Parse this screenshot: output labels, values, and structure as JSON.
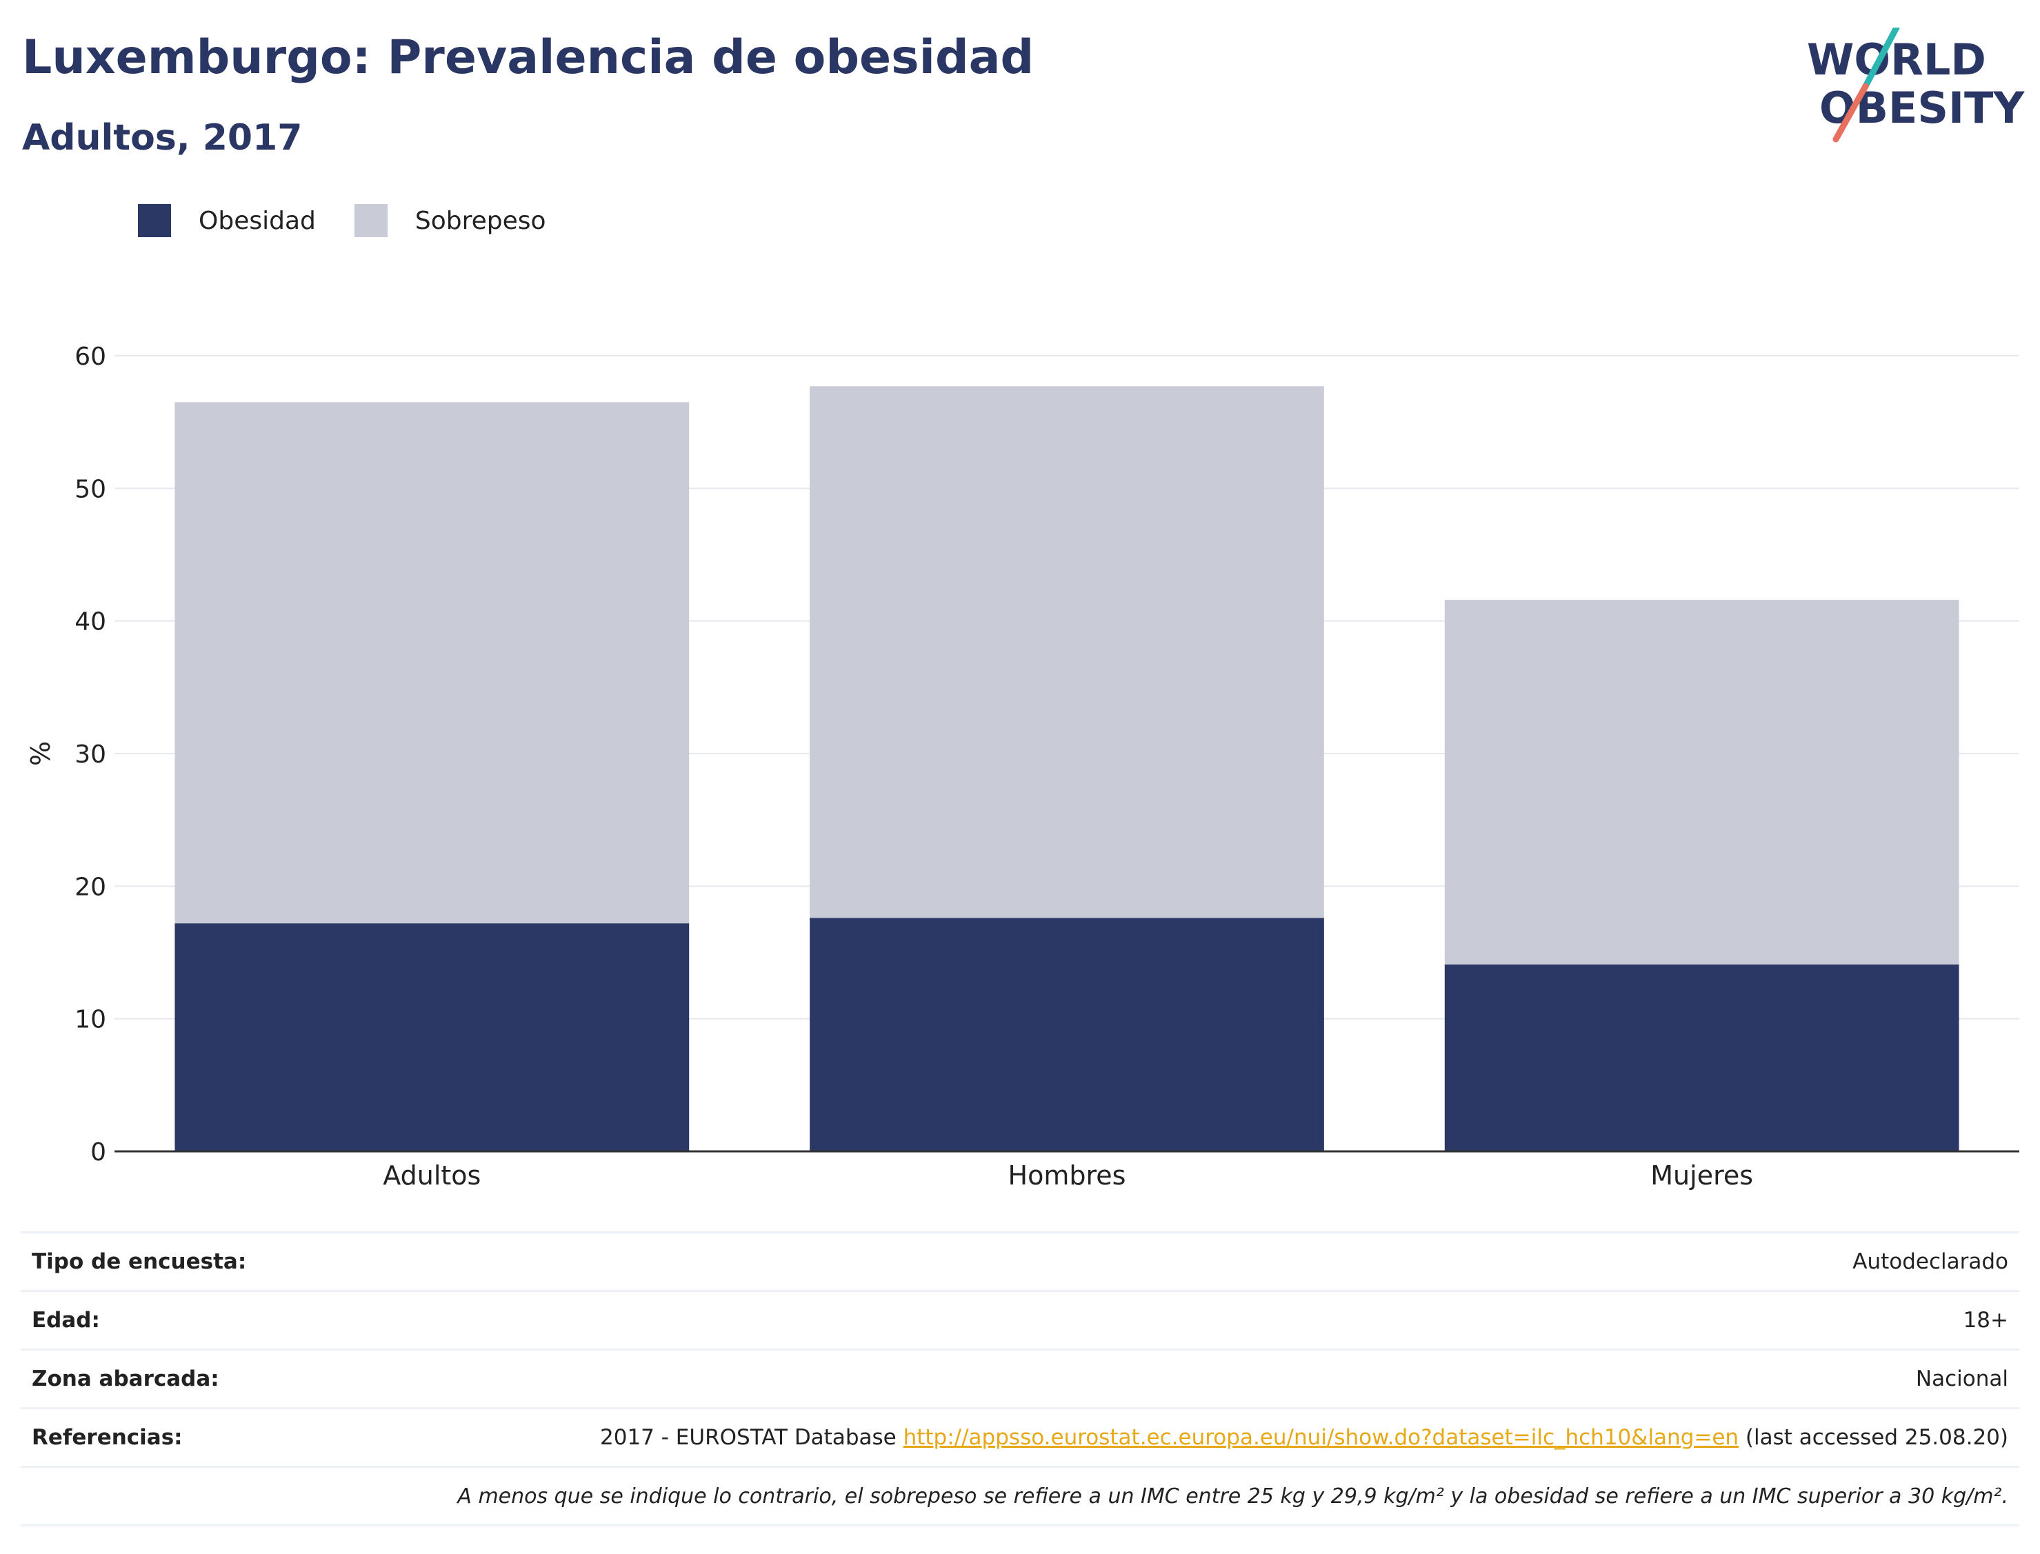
{
  "header": {
    "title": "Luxemburgo: Prevalencia de obesidad",
    "subtitle": "Adultos, 2017"
  },
  "logo": {
    "line1": "WORLD",
    "line2": "OBESITY",
    "accent_teal": "#2bb6b1",
    "accent_coral": "#e8705e",
    "text_color": "#2a3764"
  },
  "legend": [
    {
      "label": "Obesidad",
      "color": "#2b3764"
    },
    {
      "label": "Sobrepeso",
      "color": "#c9cbd7"
    }
  ],
  "chart_data": {
    "type": "bar",
    "stacked": true,
    "categories": [
      "Adultos",
      "Hombres",
      "Mujeres"
    ],
    "series": [
      {
        "name": "Obesidad",
        "values": [
          17.2,
          17.6,
          14.1
        ],
        "color": "#2b3764"
      },
      {
        "name": "Sobrepeso",
        "values": [
          39.3,
          40.1,
          27.5
        ],
        "color": "#c9cbd7"
      }
    ],
    "ylabel": "%",
    "ylim": [
      0,
      60
    ],
    "yticks": [
      0,
      10,
      20,
      30,
      40,
      50,
      60
    ],
    "grid": true,
    "legend_position": "top-left"
  },
  "info": {
    "survey_label": "Tipo de encuesta:",
    "survey_value": "Autodeclarado",
    "age_label": "Edad:",
    "age_value": "18+",
    "area_label": "Zona abarcada:",
    "area_value": "Nacional",
    "refs_label": "Referencias:",
    "refs_prefix": "2017 - EUROSTAT Database ",
    "refs_link": "http://appsso.eurostat.ec.europa.eu/nui/show.do?dataset=ilc_hch10&lang=en",
    "refs_suffix": " (last accessed 25.08.20)",
    "note": "A menos que se indique lo contrario, el sobrepeso se refiere a un IMC entre 25 kg y 29,9 kg/m² y la obesidad se refiere a un IMC superior a 30 kg/m²."
  }
}
